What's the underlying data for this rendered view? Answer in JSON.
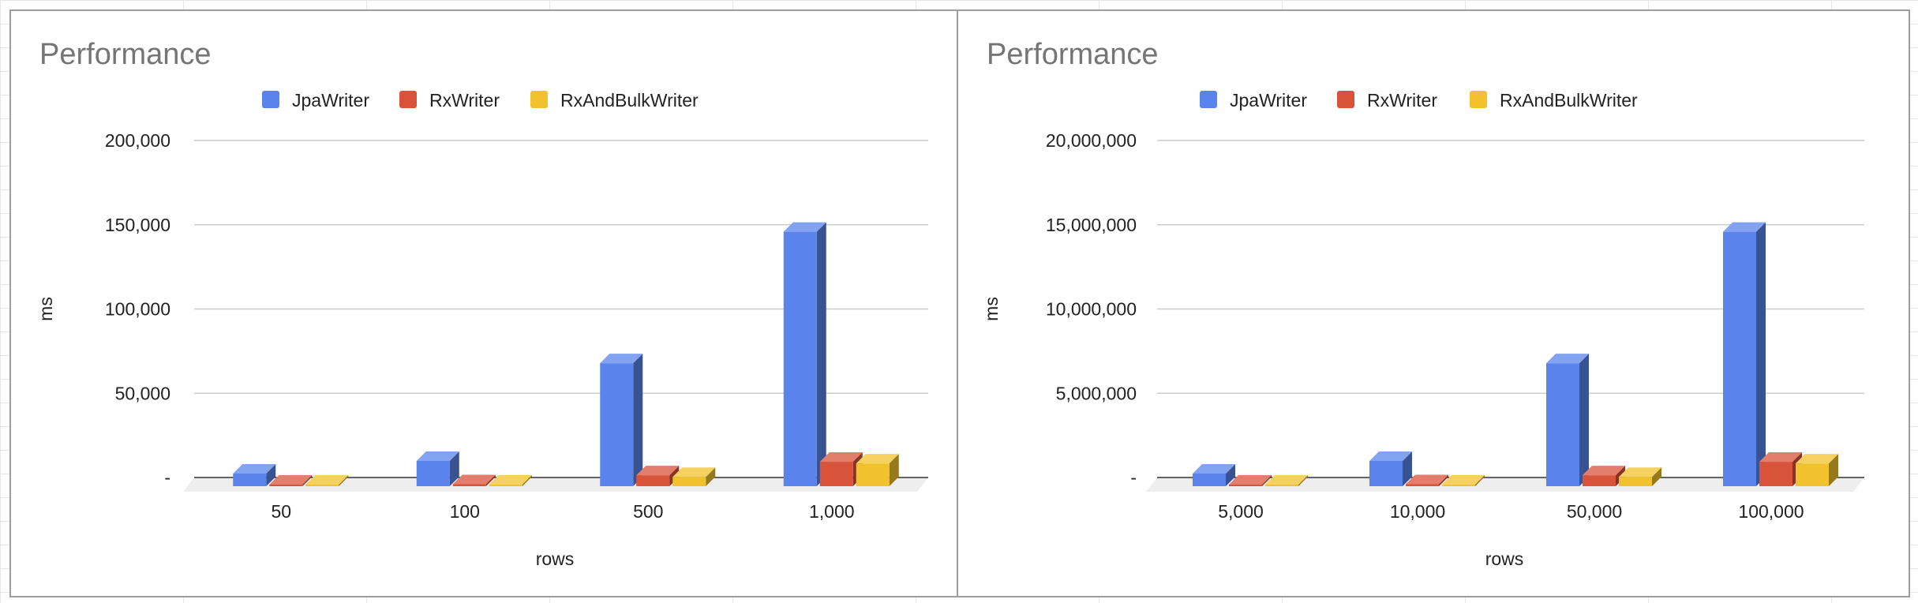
{
  "colors": {
    "JpaWriter": "#5a84ec",
    "RxWriter": "#d9533b",
    "RxAndBulkWriter": "#f2c12e",
    "gridline": "#cccccc",
    "baseline": "#333333",
    "floor": "#eeeeee"
  },
  "chart_data": [
    {
      "type": "bar",
      "style": "3d",
      "title": "Performance",
      "xlabel": "rows",
      "ylabel": "ms",
      "ylim": [
        0,
        200000
      ],
      "yticks": [
        0,
        50000,
        100000,
        150000,
        200000
      ],
      "ytick_labels": [
        "-",
        "50,000",
        "100,000",
        "150,000",
        "200,000"
      ],
      "grid": true,
      "legend_position": "top",
      "categories": [
        "50",
        "100",
        "500",
        "1,000"
      ],
      "series": [
        {
          "name": "JpaWriter",
          "values": [
            7500,
            15000,
            73000,
            151000
          ]
        },
        {
          "name": "RxWriter",
          "values": [
            300,
            1200,
            6500,
            14500
          ]
        },
        {
          "name": "RxAndBulkWriter",
          "values": [
            200,
            1000,
            5500,
            13500
          ]
        }
      ]
    },
    {
      "type": "bar",
      "style": "3d",
      "title": "Performance",
      "xlabel": "rows",
      "ylabel": "ms",
      "ylim": [
        0,
        20000000
      ],
      "yticks": [
        0,
        5000000,
        10000000,
        15000000,
        20000000
      ],
      "ytick_labels": [
        "-",
        "5,000,000",
        "10,000,000",
        "15,000,000",
        "20,000,000"
      ],
      "grid": true,
      "legend_position": "top",
      "categories": [
        "5,000",
        "10,000",
        "50,000",
        "100,000"
      ],
      "series": [
        {
          "name": "JpaWriter",
          "values": [
            750000,
            1500000,
            7300000,
            15100000
          ]
        },
        {
          "name": "RxWriter",
          "values": [
            30000,
            120000,
            650000,
            1450000
          ]
        },
        {
          "name": "RxAndBulkWriter",
          "values": [
            20000,
            100000,
            550000,
            1350000
          ]
        }
      ]
    }
  ]
}
